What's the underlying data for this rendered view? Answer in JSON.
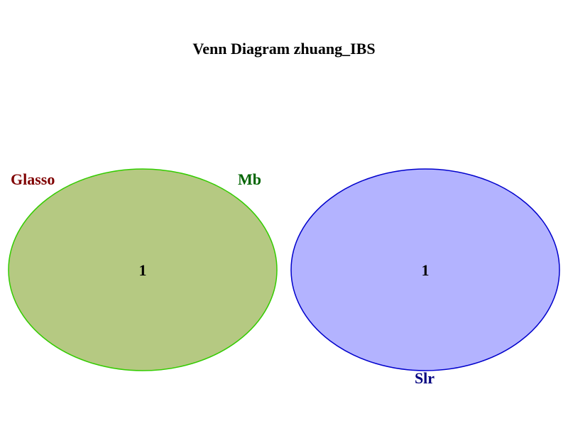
{
  "title": "Venn Diagram zhuang_IBS",
  "sets": [
    {
      "name": "Glasso",
      "label_color": "#7f0000",
      "fill": "#b5c982",
      "stroke": "#33cc00"
    },
    {
      "name": "Mb",
      "label_color": "#006400",
      "fill": "#b5c982",
      "stroke": "#33cc00"
    },
    {
      "name": "Slr",
      "label_color": "#00007f",
      "fill": "#b3b3ff",
      "stroke": "#0000cc"
    }
  ],
  "regions": [
    {
      "sets": [
        "Glasso",
        "Mb"
      ],
      "count": "1"
    },
    {
      "sets": [
        "Slr"
      ],
      "count": "1"
    }
  ]
}
